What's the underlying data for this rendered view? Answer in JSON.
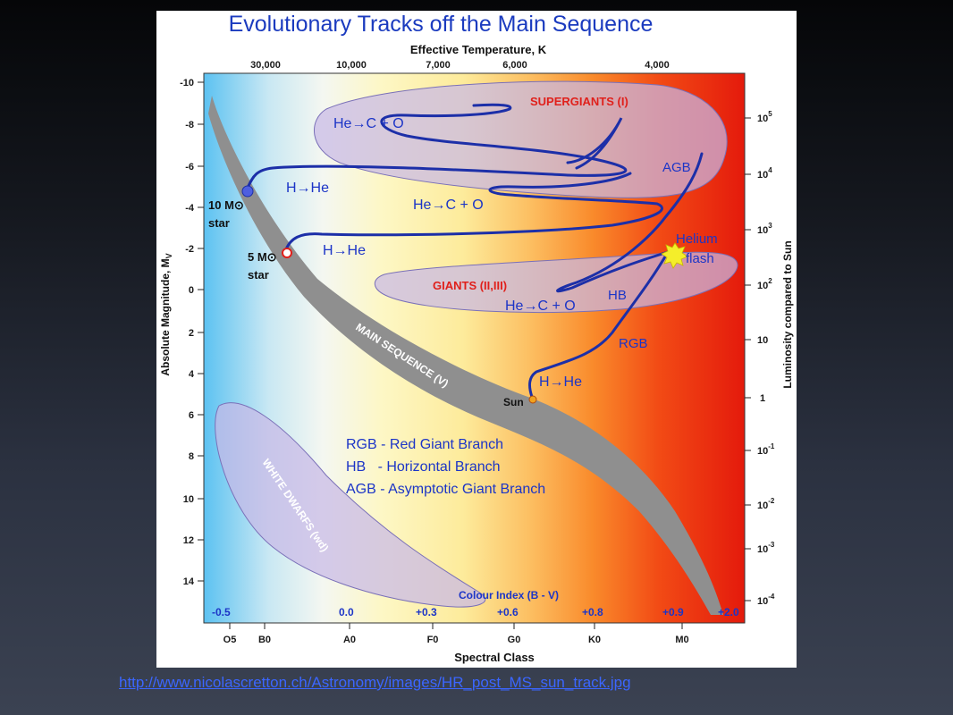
{
  "title": "Evolutionary Tracks off the Main Sequence",
  "top_axis": {
    "label": "Effective Temperature, K",
    "ticks": [
      "30,000",
      "10,000",
      "7,000",
      "6,000",
      "4,000"
    ]
  },
  "left_axis": {
    "label": "Absolute Magnitude, MV",
    "label_main": "Absolute Magnitude, M",
    "label_sub": "V",
    "ticks": [
      "-10",
      "-8",
      "-6",
      "-4",
      "-2",
      "0",
      "2",
      "4",
      "6",
      "8",
      "10",
      "12",
      "14"
    ]
  },
  "right_axis": {
    "label": "Luminosity compared to Sun",
    "ticks": [
      {
        "base": "10",
        "exp": "5"
      },
      {
        "base": "10",
        "exp": "4"
      },
      {
        "base": "10",
        "exp": "3"
      },
      {
        "base": "10",
        "exp": "2"
      },
      {
        "base": "10",
        "exp": ""
      },
      {
        "base": "1",
        "exp": ""
      },
      {
        "base": "10",
        "exp": "-1"
      },
      {
        "base": "10",
        "exp": "-2"
      },
      {
        "base": "10",
        "exp": "-3"
      },
      {
        "base": "10",
        "exp": "-4"
      }
    ]
  },
  "bottom_axis": {
    "label": "Spectral Class",
    "ticks": [
      "O5",
      "B0",
      "A0",
      "F0",
      "G0",
      "K0",
      "M0"
    ]
  },
  "colour_index": {
    "label": "Colour Index (B - V)",
    "values": [
      "-0.5",
      "0.0",
      "+0.3",
      "+0.6",
      "+0.8",
      "+0.9",
      "+2.0"
    ]
  },
  "regions": {
    "supergiants": "SUPERGIANTS (I)",
    "giants": "GIANTS (II,III)",
    "main_sequence": "MAIN SEQUENCE (V)",
    "white_dwarfs": "WHITE DWARFS (wd)"
  },
  "labels": {
    "star10": "10 M",
    "star5": "5 M",
    "star_word": "star",
    "sun": "Sun",
    "agb": "AGB",
    "hb": "HB",
    "rgb": "RGB",
    "helium": "Helium",
    "flash": "flash",
    "h_he_10": "H→He",
    "h_he_5": "H→He",
    "h_he_sun": "H→He",
    "he_co_top": "He→C + O",
    "he_co_mid": "He→C + O",
    "he_co_giant": "He→C + O"
  },
  "legend": [
    "RGB - Red Giant Branch",
    "HB   - Horizontal Branch",
    "AGB - Asymptotic Giant Branch"
  ],
  "source_url": "http://www.nicolascretton.ch/Astronomy/images/HR_post_MS_sun_track.jpg",
  "colors": {
    "track": "#1c2fa8",
    "main_sequence": "#8f8f8f",
    "region_fill": "#c7b8e6",
    "label_red": "#e0201b",
    "label_blue": "#1c35c7"
  }
}
